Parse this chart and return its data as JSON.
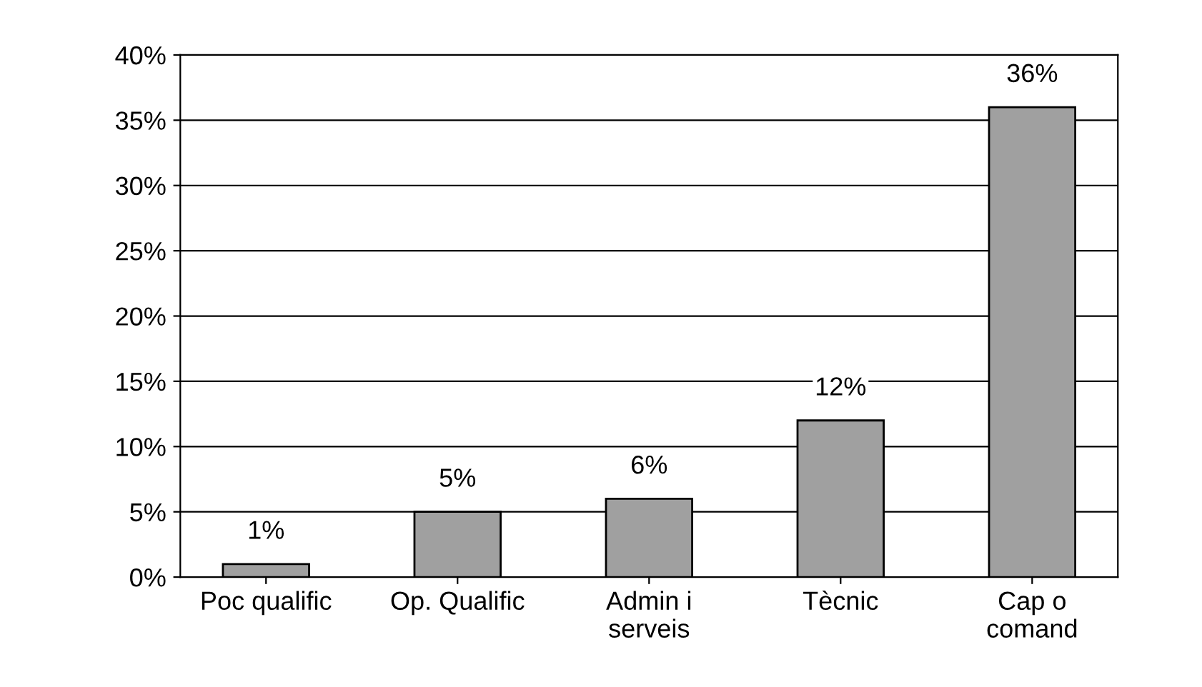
{
  "chart_data": {
    "type": "bar",
    "categories": [
      "Poc qualific",
      "Op. Qualific",
      "Admin i\nserveis",
      "Tècnic",
      "Cap o\ncomand"
    ],
    "values": [
      1,
      5,
      6,
      12,
      36
    ],
    "value_labels": [
      "1%",
      "5%",
      "6%",
      "12%",
      "36%"
    ],
    "color": "#a0a0a0",
    "ylim": [
      0,
      40
    ],
    "yticks": [
      {
        "value": 0,
        "label": "0%"
      },
      {
        "value": 5,
        "label": "5%"
      },
      {
        "value": 10,
        "label": "10%"
      },
      {
        "value": 15,
        "label": "15%"
      },
      {
        "value": 20,
        "label": "20%"
      },
      {
        "value": 25,
        "label": "25%"
      },
      {
        "value": 30,
        "label": "30%"
      },
      {
        "value": 35,
        "label": "35%"
      },
      {
        "value": 40,
        "label": "40%"
      }
    ],
    "grid": "y",
    "legend": false
  }
}
